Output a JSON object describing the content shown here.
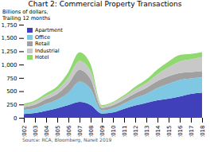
{
  "chart_data": {
    "type": "area",
    "stacked": true,
    "title": "Chart 2: Commercial Property Transactions",
    "ylabel": "Billions of dollars,\nTrailing 12 months",
    "source": "Source: RCA, Bloomberg, Nareit 2019",
    "x": [
      2002,
      2003,
      2004,
      2005,
      2006,
      2007,
      2008,
      2009,
      2010,
      2011,
      2012,
      2013,
      2014,
      2015,
      2016,
      2017,
      2018
    ],
    "series": [
      {
        "name": "Apartment",
        "color": "#4040bb",
        "values": [
          70,
          90,
          130,
          180,
          240,
          300,
          240,
          80,
          100,
          170,
          230,
          280,
          330,
          360,
          400,
          450,
          470
        ]
      },
      {
        "name": "Office",
        "color": "#7ec8e3",
        "values": [
          80,
          90,
          130,
          160,
          230,
          380,
          300,
          60,
          80,
          100,
          140,
          170,
          230,
          280,
          310,
          290,
          290
        ]
      },
      {
        "name": "Retail",
        "color": "#a0a0a0",
        "values": [
          50,
          65,
          90,
          110,
          170,
          220,
          180,
          45,
          55,
          70,
          90,
          110,
          130,
          140,
          130,
          120,
          120
        ]
      },
      {
        "name": "Industrial",
        "color": "#c8c8c8",
        "values": [
          40,
          50,
          65,
          80,
          120,
          170,
          150,
          35,
          45,
          55,
          75,
          95,
          130,
          170,
          220,
          240,
          260
        ]
      },
      {
        "name": "Hotel",
        "color": "#90d870",
        "values": [
          25,
          30,
          45,
          60,
          100,
          160,
          130,
          20,
          20,
          30,
          50,
          65,
          90,
          110,
          120,
          100,
          95
        ]
      }
    ],
    "xlim": [
      2002,
      2018
    ],
    "xticks": [
      2002,
      2003,
      2004,
      2005,
      2006,
      2007,
      2008,
      2009,
      2010,
      2011,
      2012,
      2013,
      2014,
      2015,
      2016,
      2017,
      2018
    ],
    "ylim": [
      0,
      1750
    ],
    "yticks": [
      0,
      250,
      500,
      750,
      {
        "value": 1000,
        "label": "1,000"
      },
      {
        "value": 1250,
        "label": "1,250"
      },
      {
        "value": 1500,
        "label": "1,500"
      },
      {
        "value": 1750,
        "label": "1,750"
      }
    ],
    "legend": "upper left",
    "grid": false
  }
}
